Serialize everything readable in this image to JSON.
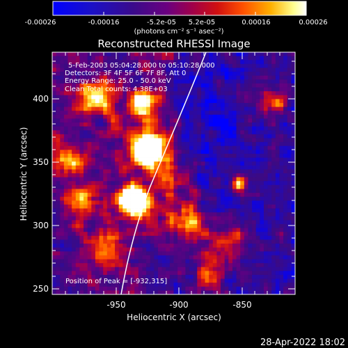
{
  "colorbar": {
    "ticks": [
      "-0.00026",
      "-0.00016",
      "-5.2e-05",
      "5.2e-05",
      "0.00016",
      "0.00026"
    ],
    "units_label": "(photons cm⁻² s⁻¹ asec⁻²)",
    "colors": [
      "#0000ff",
      "#1a00c0",
      "#5a00a0",
      "#9a0070",
      "#d02020",
      "#ff6000",
      "#ffb000",
      "#ffff80",
      "#ffffff"
    ]
  },
  "title": "Reconstructed RHESSI Image",
  "annotations": {
    "time_range": "5-Feb-2003 05:04:28.000 to 05:10:28.000",
    "detectors": "Detectors: 3F 4F 5F 6F 7F 8F, Att 0",
    "energy": "Energy Range: 25.0 - 50.0 keV",
    "clean": "Clean    Total counts: 4.38E+03",
    "peak": "Position of Peak = [-932,315]"
  },
  "axes": {
    "xlabel": "Heliocentric X (arcsec)",
    "ylabel": "Heliocentric Y (arcsec)",
    "xticks": [
      "-950",
      "-900",
      "-850"
    ],
    "yticks": [
      "400",
      "350",
      "300",
      "250"
    ],
    "xlim": [
      -995,
      -808
    ],
    "ylim": [
      244,
      434
    ]
  },
  "footer_timestamp": "28-Apr-2022 18:02",
  "image": {
    "grid_cols": 62,
    "grid_rows": 62,
    "peak_position": [
      -932,
      315
    ]
  }
}
